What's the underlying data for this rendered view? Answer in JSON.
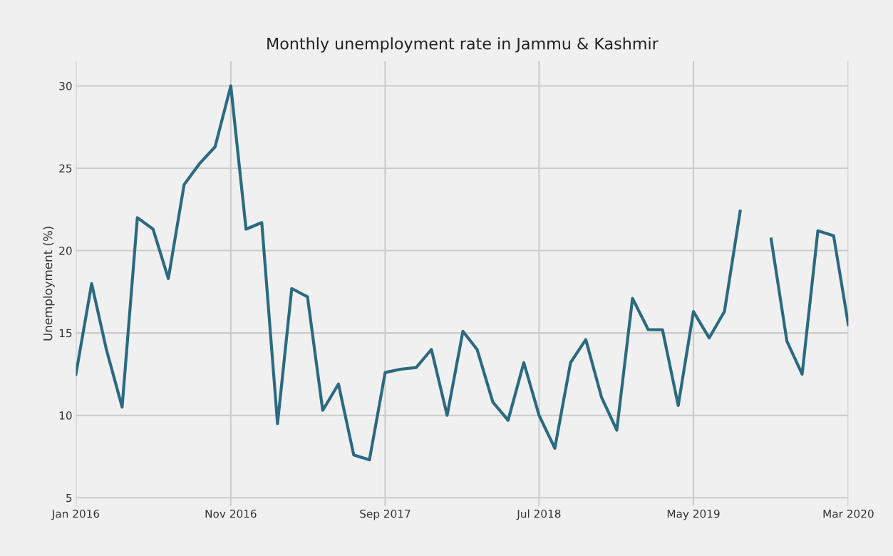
{
  "chart_data": {
    "type": "line",
    "title": "Monthly unemployment rate in Jammu & Kashmir",
    "ylabel": "Unemployment (%)",
    "x": [
      "2016-01",
      "2016-02",
      "2016-03",
      "2016-04",
      "2016-05",
      "2016-06",
      "2016-07",
      "2016-08",
      "2016-09",
      "2016-10",
      "2016-11",
      "2016-12",
      "2017-01",
      "2017-02",
      "2017-03",
      "2017-04",
      "2017-05",
      "2017-06",
      "2017-07",
      "2017-08",
      "2017-09",
      "2017-10",
      "2017-11",
      "2017-12",
      "2018-01",
      "2018-02",
      "2018-03",
      "2018-04",
      "2018-05",
      "2018-06",
      "2018-07",
      "2018-08",
      "2018-09",
      "2018-10",
      "2018-11",
      "2018-12",
      "2019-01",
      "2019-02",
      "2019-03",
      "2019-04",
      "2019-05",
      "2019-06",
      "2019-07",
      "2019-08",
      "2019-09",
      "2019-10",
      "2019-11",
      "2019-12",
      "2020-01",
      "2020-02",
      "2020-03"
    ],
    "series": [
      {
        "color": "#2b6a80",
        "values": [
          12.5,
          18.0,
          14.0,
          10.5,
          22.0,
          21.3,
          18.3,
          24.0,
          25.3,
          26.3,
          30.0,
          21.3,
          21.7,
          9.5,
          17.7,
          17.2,
          10.3,
          11.9,
          7.6,
          7.3,
          12.6,
          12.8,
          12.9,
          14.0,
          10.0,
          15.1,
          14.0,
          10.8,
          9.7,
          13.2,
          10.0,
          8.0,
          13.2,
          14.6,
          11.1,
          9.1,
          17.1,
          15.2,
          15.2,
          10.6,
          16.3,
          14.7,
          16.3,
          22.4,
          null,
          20.7,
          14.5,
          12.5,
          21.2,
          20.9,
          15.5
        ]
      }
    ],
    "xlim": [
      "2016-01",
      "2020-03"
    ],
    "xticks": [
      {
        "value": "2016-01",
        "label": "Jan 2016"
      },
      {
        "value": "2016-11",
        "label": "Nov 2016"
      },
      {
        "value": "2017-09",
        "label": "Sep 2017"
      },
      {
        "value": "2018-07",
        "label": "Jul 2018"
      },
      {
        "value": "2019-05",
        "label": "May 2019"
      },
      {
        "value": "2020-03",
        "label": "Mar 2020"
      }
    ],
    "ylim": [
      4.5,
      31.5
    ],
    "yticks": [
      5,
      10,
      15,
      20,
      25,
      30
    ],
    "grid": true,
    "marker": "none",
    "line_style": "solid"
  }
}
